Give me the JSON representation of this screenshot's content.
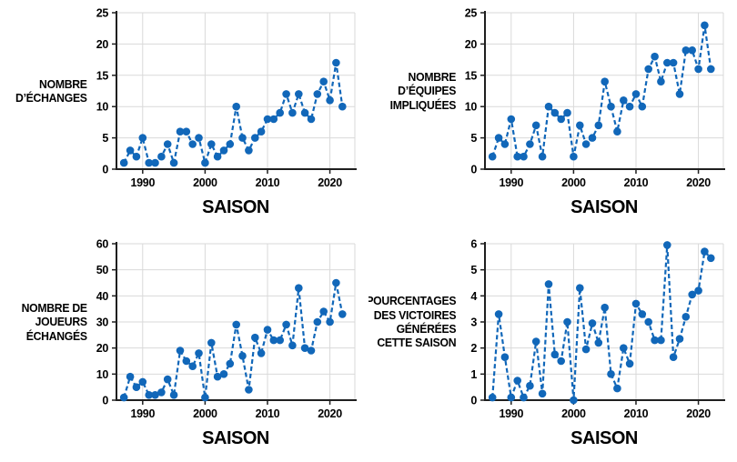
{
  "style": {
    "accent_blue": "#1167b9",
    "grid_color": "#d9d9d9",
    "axis_color": "#1f1f1f",
    "text_color": "#000000",
    "background": "#ffffff"
  },
  "chart_data": [
    {
      "type": "line",
      "marker": "circle",
      "line_style": "dashed",
      "title": "",
      "ylabel": "NOMBRE\nD’ÉCHANGES",
      "xlabel": "SAISON",
      "x_start": 1987,
      "x_end": 2022,
      "x_step": 1,
      "xlim": [
        1985.8,
        2024.0
      ],
      "ylim": [
        0,
        25
      ],
      "yticks": [
        0,
        5,
        10,
        15,
        20,
        25
      ],
      "xticks": [
        1990,
        2000,
        2010,
        2020
      ],
      "grid": true,
      "legend": false,
      "values": [
        1,
        3,
        2,
        5,
        1,
        1,
        2,
        4,
        1,
        6,
        6,
        4,
        5,
        1,
        4,
        2,
        3,
        4,
        10,
        5,
        3,
        5,
        6,
        8,
        8,
        9,
        12,
        9,
        12,
        9,
        8,
        12,
        14,
        11,
        17,
        10
      ]
    },
    {
      "type": "line",
      "marker": "circle",
      "line_style": "dashed",
      "title": "",
      "ylabel": "NOMBRE\nD’ÉQUIPES\nIMPLIQUÉES",
      "xlabel": "SAISON",
      "x_start": 1987,
      "x_end": 2022,
      "x_step": 1,
      "xlim": [
        1985.8,
        2024.0
      ],
      "ylim": [
        0,
        25
      ],
      "yticks": [
        0,
        5,
        10,
        15,
        20,
        25
      ],
      "xticks": [
        1990,
        2000,
        2010,
        2020
      ],
      "grid": true,
      "legend": false,
      "values": [
        2,
        5,
        4,
        8,
        2,
        2,
        4,
        7,
        2,
        10,
        9,
        8,
        9,
        2,
        7,
        4,
        5,
        7,
        14,
        10,
        6,
        11,
        10,
        12,
        10,
        16,
        18,
        14,
        17,
        17,
        12,
        19,
        19,
        16,
        23,
        16
      ]
    },
    {
      "type": "line",
      "marker": "circle",
      "line_style": "dashed",
      "title": "",
      "ylabel": "NOMBRE DE\nJOUEURS\nÉCHANGÉS",
      "xlabel": "SAISON",
      "x_start": 1987,
      "x_end": 2022,
      "x_step": 1,
      "xlim": [
        1985.8,
        2024.0
      ],
      "ylim": [
        0,
        60
      ],
      "yticks": [
        0,
        10,
        20,
        30,
        40,
        50,
        60
      ],
      "xticks": [
        1990,
        2000,
        2010,
        2020
      ],
      "grid": true,
      "legend": false,
      "values": [
        1,
        9,
        5,
        7,
        2,
        2,
        3,
        8,
        2,
        19,
        15,
        13,
        18,
        1,
        22,
        9,
        10,
        14,
        29,
        17,
        4,
        24,
        18,
        27,
        23,
        23,
        29,
        21,
        43,
        20,
        19,
        30,
        34,
        30,
        45,
        33
      ]
    },
    {
      "type": "line",
      "marker": "circle",
      "line_style": "dashed",
      "title": "",
      "ylabel": "POURCENTAGES\nDES VICTOIRES\nGÉNÉRÉES\nCETTE SAISON",
      "xlabel": "SAISON",
      "x_start": 1987,
      "x_end": 2022,
      "x_step": 1,
      "xlim": [
        1985.8,
        2024.0
      ],
      "ylim": [
        0,
        6
      ],
      "yticks": [
        0,
        1,
        2,
        3,
        4,
        5,
        6
      ],
      "xticks": [
        1990,
        2000,
        2010,
        2020
      ],
      "grid": true,
      "legend": false,
      "values": [
        0.1,
        3.3,
        1.65,
        0.1,
        0.75,
        0.1,
        0.55,
        2.25,
        0.25,
        4.45,
        1.75,
        1.5,
        3.0,
        0.0,
        4.3,
        1.95,
        2.95,
        2.2,
        3.55,
        1.0,
        0.45,
        2.0,
        1.4,
        3.7,
        3.3,
        3.0,
        2.3,
        2.3,
        5.95,
        1.65,
        2.35,
        3.2,
        4.05,
        4.2,
        5.7,
        5.45
      ]
    }
  ]
}
